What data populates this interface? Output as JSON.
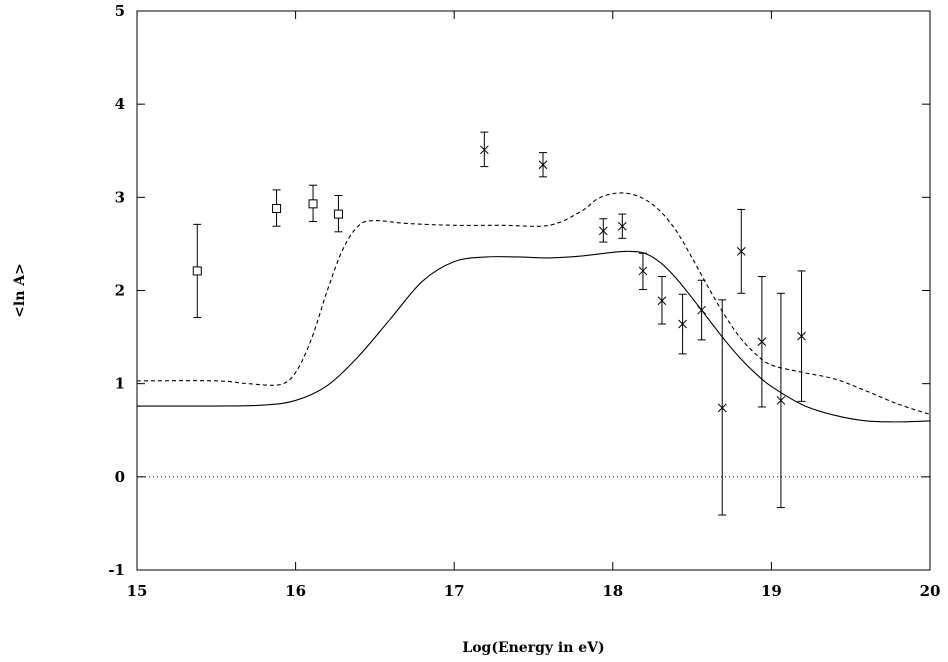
{
  "chart_data": {
    "type": "scatter",
    "title": "",
    "xlabel": "Log(Energy in eV)",
    "ylabel": "<ln A>",
    "xlim": [
      15,
      20
    ],
    "ylim": [
      -1,
      5
    ],
    "x_ticks": [
      15,
      16,
      17,
      18,
      19,
      20
    ],
    "y_ticks": [
      -1,
      0,
      1,
      2,
      3,
      4,
      5
    ],
    "grid": false,
    "legend": "none",
    "zero_line": {
      "y": 0,
      "style": "dotted"
    },
    "series": [
      {
        "marker": "square",
        "points": [
          {
            "x": 15.38,
            "y": 2.21,
            "err_low": 1.71,
            "err_high": 2.71
          },
          {
            "x": 15.88,
            "y": 2.88,
            "err_low": 2.69,
            "err_high": 3.08
          },
          {
            "x": 16.11,
            "y": 2.93,
            "err_low": 2.74,
            "err_high": 3.13
          },
          {
            "x": 16.27,
            "y": 2.82,
            "err_low": 2.63,
            "err_high": 3.02
          }
        ]
      },
      {
        "marker": "cross",
        "points": [
          {
            "x": 17.19,
            "y": 3.51,
            "err_low": 3.33,
            "err_high": 3.7
          },
          {
            "x": 17.56,
            "y": 3.35,
            "err_low": 3.22,
            "err_high": 3.48
          },
          {
            "x": 17.94,
            "y": 2.64,
            "err_low": 2.52,
            "err_high": 2.77
          },
          {
            "x": 18.06,
            "y": 2.69,
            "err_low": 2.56,
            "err_high": 2.82
          },
          {
            "x": 18.19,
            "y": 2.21,
            "err_low": 2.01,
            "err_high": 2.4
          },
          {
            "x": 18.31,
            "y": 1.89,
            "err_low": 1.64,
            "err_high": 2.15
          },
          {
            "x": 18.44,
            "y": 1.64,
            "err_low": 1.32,
            "err_high": 1.96
          },
          {
            "x": 18.56,
            "y": 1.79,
            "err_low": 1.47,
            "err_high": 2.11
          },
          {
            "x": 18.69,
            "y": 0.74,
            "err_low": -0.41,
            "err_high": 1.9
          },
          {
            "x": 18.81,
            "y": 2.42,
            "err_low": 1.97,
            "err_high": 2.87
          },
          {
            "x": 18.94,
            "y": 1.45,
            "err_low": 0.75,
            "err_high": 2.15
          },
          {
            "x": 19.06,
            "y": 0.82,
            "err_low": -0.33,
            "err_high": 1.97
          },
          {
            "x": 19.19,
            "y": 1.51,
            "err_low": 0.81,
            "err_high": 2.21
          }
        ]
      }
    ],
    "curves": [
      {
        "style": "solid",
        "x": [
          15.0,
          15.5,
          15.8,
          16.0,
          16.2,
          16.4,
          16.6,
          16.8,
          17.0,
          17.2,
          17.4,
          17.6,
          17.8,
          18.0,
          18.1,
          18.2,
          18.3,
          18.4,
          18.5,
          18.6,
          18.7,
          18.8,
          18.9,
          19.0,
          19.2,
          19.4,
          19.6,
          19.8,
          20.0
        ],
        "y": [
          0.76,
          0.76,
          0.77,
          0.82,
          0.98,
          1.3,
          1.7,
          2.1,
          2.31,
          2.36,
          2.36,
          2.35,
          2.37,
          2.41,
          2.42,
          2.4,
          2.3,
          2.13,
          1.92,
          1.7,
          1.48,
          1.28,
          1.11,
          0.97,
          0.77,
          0.66,
          0.6,
          0.59,
          0.6
        ]
      },
      {
        "style": "dashed",
        "x": [
          15.0,
          15.5,
          15.7,
          15.9,
          16.0,
          16.1,
          16.2,
          16.3,
          16.4,
          16.5,
          16.7,
          17.0,
          17.3,
          17.6,
          17.8,
          17.9,
          18.0,
          18.1,
          18.2,
          18.3,
          18.4,
          18.5,
          18.6,
          18.7,
          18.8,
          18.9,
          19.0,
          19.2,
          19.4,
          19.6,
          19.8,
          20.0
        ],
        "y": [
          1.03,
          1.03,
          1.0,
          0.99,
          1.12,
          1.48,
          2.0,
          2.45,
          2.7,
          2.75,
          2.72,
          2.7,
          2.7,
          2.7,
          2.85,
          2.98,
          3.04,
          3.04,
          2.98,
          2.85,
          2.64,
          2.35,
          2.04,
          1.75,
          1.5,
          1.32,
          1.2,
          1.12,
          1.05,
          0.92,
          0.78,
          0.67
        ]
      }
    ]
  }
}
